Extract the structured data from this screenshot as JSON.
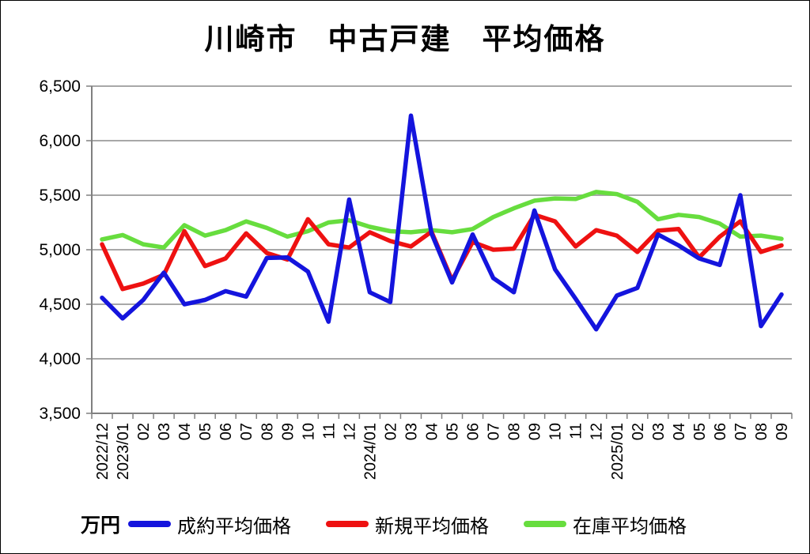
{
  "header": {
    "title": "川崎市　中古戸建　平均価格"
  },
  "unit_label": "万円",
  "legend": {
    "items": [
      {
        "label": "成約平均価格",
        "color": "#1414dd"
      },
      {
        "label": "新規平均価格",
        "color": "#ee1111"
      },
      {
        "label": "在庫平均価格",
        "color": "#67dd3e"
      }
    ]
  },
  "colors": {
    "grid": "#a8a8a8",
    "axis": "#808080",
    "text": "#000000",
    "background": "#ffffff"
  },
  "chart_data": {
    "type": "line",
    "title": "川崎市　中古戸建　平均価格",
    "xlabel": "",
    "ylabel": "万円",
    "ylim": [
      3500,
      6500
    ],
    "ytick_step": 500,
    "ytick_labels": [
      "3,500",
      "4,000",
      "4,500",
      "5,000",
      "5,500",
      "6,000",
      "6,500"
    ],
    "grid": true,
    "legend_position": "bottom",
    "x": [
      "2022/12",
      "2023/01",
      "02",
      "03",
      "04",
      "05",
      "06",
      "07",
      "08",
      "09",
      "10",
      "11",
      "12",
      "2024/01",
      "02",
      "03",
      "04",
      "05",
      "06",
      "07",
      "08",
      "09",
      "10",
      "11",
      "12",
      "2025/01",
      "02",
      "03",
      "04",
      "05",
      "06",
      "07",
      "08",
      "09"
    ],
    "series": [
      {
        "name": "成約平均価格",
        "color": "#1414dd",
        "values": [
          4560,
          4370,
          4540,
          4790,
          4500,
          4540,
          4620,
          4570,
          4925,
          4930,
          4800,
          4340,
          5460,
          4610,
          4520,
          6230,
          5150,
          4700,
          5140,
          4740,
          4610,
          5360,
          4820,
          4550,
          4270,
          4580,
          4650,
          5140,
          5040,
          4920,
          4860,
          5500,
          4300,
          4590
        ]
      },
      {
        "name": "新規平均価格",
        "color": "#ee1111",
        "values": [
          5050,
          4640,
          4690,
          4770,
          5170,
          4850,
          4920,
          5150,
          4970,
          4910,
          5280,
          5050,
          5020,
          5160,
          5080,
          5030,
          5165,
          4720,
          5070,
          5000,
          5010,
          5320,
          5260,
          5030,
          5180,
          5130,
          4980,
          5175,
          5190,
          4930,
          5120,
          5260,
          4980,
          5040
        ]
      },
      {
        "name": "在庫平均価格",
        "color": "#67dd3e",
        "values": [
          5095,
          5135,
          5050,
          5020,
          5225,
          5130,
          5180,
          5260,
          5200,
          5120,
          5170,
          5250,
          5270,
          5210,
          5170,
          5160,
          5180,
          5160,
          5190,
          5300,
          5380,
          5450,
          5470,
          5465,
          5530,
          5510,
          5440,
          5280,
          5320,
          5300,
          5240,
          5120,
          5130,
          5100
        ]
      }
    ]
  }
}
